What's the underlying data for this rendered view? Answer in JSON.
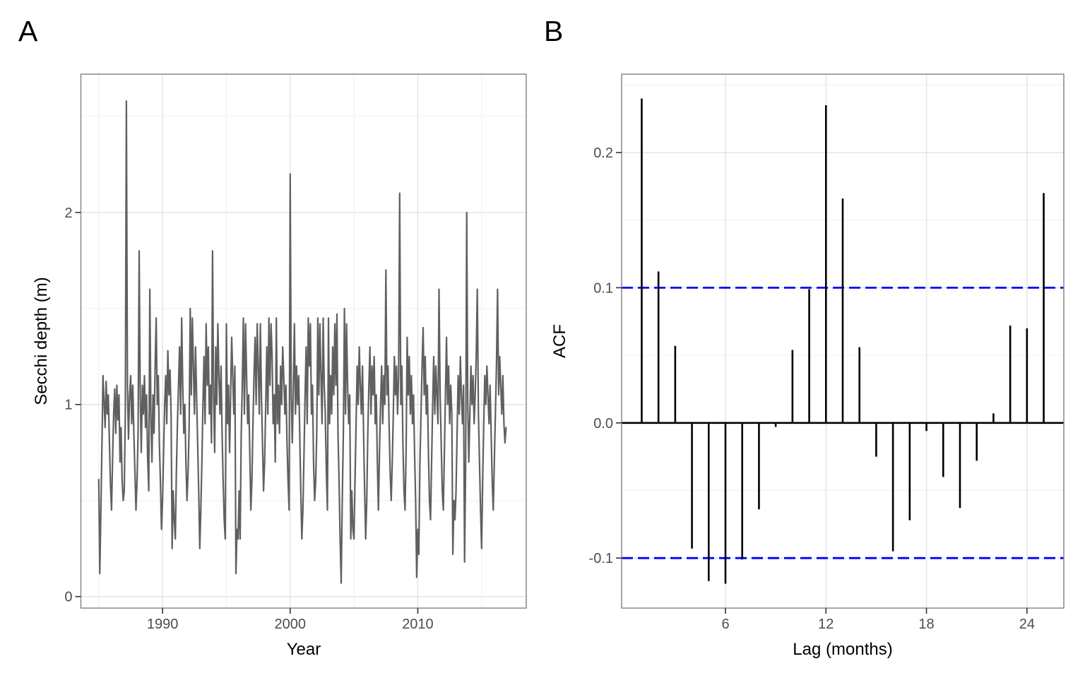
{
  "panels": [
    {
      "letter": "A"
    },
    {
      "letter": "B"
    }
  ],
  "colors": {
    "series_line": "#606060",
    "acf_bar": "#000000",
    "conf_line": "#0000ff",
    "grid_major": "#e3e3e3",
    "grid_minor": "#f0f0f0",
    "panel_border": "#808080",
    "tick_mark": "#333333",
    "tick_label": "#4d4d4d"
  },
  "chart_data": [
    {
      "type": "line",
      "panel": "A",
      "title": "",
      "xlabel": "Year",
      "ylabel": "Secchi depth (m)",
      "grid": true,
      "legend": "none",
      "x_start": 1985.0,
      "x_step": 0.0833333,
      "xlim": [
        1983.6,
        2018.5
      ],
      "ylim": [
        -0.06,
        2.72
      ],
      "x_ticks_major": [
        1990,
        2000,
        2010
      ],
      "x_tick_labels": [
        "1990",
        "2000",
        "2010"
      ],
      "x_ticks_minor": [
        1985,
        1995,
        2005,
        2015
      ],
      "y_ticks_major": [
        0,
        1,
        2
      ],
      "y_tick_labels": [
        "0",
        "1",
        "2"
      ],
      "y_ticks_minor": [
        0.5,
        1.5,
        2.5
      ],
      "values": [
        0.61,
        0.12,
        0.45,
        0.78,
        1.15,
        1.02,
        0.88,
        1.12,
        0.95,
        1.05,
        0.82,
        0.58,
        0.45,
        0.72,
        0.95,
        1.08,
        0.85,
        1.1,
        0.92,
        1.05,
        0.7,
        0.88,
        0.6,
        0.5,
        0.55,
        0.95,
        2.58,
        1.1,
        0.82,
        1.05,
        1.15,
        0.9,
        1.1,
        0.85,
        0.65,
        0.45,
        0.6,
        0.85,
        1.8,
        1.05,
        0.75,
        1.1,
        0.95,
        1.15,
        0.88,
        1.05,
        0.72,
        0.55,
        1.6,
        0.95,
        0.7,
        1.05,
        0.85,
        1.2,
        1.45,
        1.0,
        1.15,
        0.8,
        0.6,
        0.35,
        0.5,
        0.75,
        1.0,
        1.15,
        0.9,
        1.28,
        1.05,
        1.18,
        0.95,
        0.25,
        0.55,
        0.4,
        0.3,
        0.65,
        0.9,
        1.1,
        1.3,
        0.95,
        1.45,
        1.1,
        0.85,
        1.0,
        0.7,
        0.5,
        0.65,
        0.9,
        1.5,
        1.05,
        1.45,
        1.2,
        0.95,
        1.3,
        1.05,
        0.8,
        0.55,
        0.25,
        0.45,
        0.7,
        1.0,
        1.25,
        0.9,
        1.42,
        1.1,
        1.3,
        0.95,
        1.1,
        0.8,
        1.8,
        1.05,
        0.75,
        1.3,
        1.0,
        1.42,
        1.15,
        0.95,
        1.2,
        0.85,
        0.6,
        0.4,
        0.3,
        1.42,
        0.9,
        1.1,
        0.75,
        1.05,
        1.35,
        1.15,
        0.95,
        1.2,
        0.12,
        0.35,
        0.3,
        0.55,
        0.3,
        0.85,
        1.1,
        1.45,
        0.95,
        1.42,
        1.15,
        0.9,
        1.05,
        0.75,
        0.45,
        0.6,
        0.9,
        1.15,
        1.35,
        1.0,
        1.42,
        1.2,
        0.95,
        1.42,
        1.05,
        0.8,
        0.55,
        0.7,
        1.0,
        1.3,
        0.95,
        1.45,
        1.1,
        1.42,
        1.25,
        0.9,
        1.05,
        0.7,
        1.45,
        0.9,
        1.1,
        0.85,
        1.2,
        1.0,
        1.3,
        1.15,
        0.95,
        1.1,
        0.8,
        0.6,
        0.45,
        2.2,
        1.05,
        0.8,
        1.1,
        1.42,
        0.95,
        1.2,
        1.0,
        1.15,
        0.85,
        0.55,
        0.3,
        0.45,
        0.75,
        1.05,
        1.3,
        0.9,
        1.45,
        1.2,
        1.42,
        0.95,
        1.1,
        0.7,
        0.5,
        0.6,
        0.85,
        1.45,
        1.05,
        1.42,
        1.15,
        0.9,
        1.45,
        1.1,
        0.95,
        0.65,
        0.45,
        1.45,
        0.9,
        1.15,
        0.95,
        1.3,
        1.05,
        1.42,
        1.1,
        1.47,
        0.85,
        0.6,
        0.3,
        0.07,
        0.5,
        0.85,
        1.5,
        0.95,
        1.42,
        1.1,
        0.9,
        1.05,
        0.3,
        0.55,
        0.35,
        0.3,
        0.6,
        0.9,
        1.2,
        1.0,
        1.3,
        1.1,
        0.95,
        1.2,
        0.85,
        0.55,
        0.3,
        0.5,
        0.85,
        1.1,
        1.3,
        0.95,
        1.2,
        1.05,
        1.25,
        0.9,
        1.05,
        0.7,
        0.45,
        0.75,
        1.0,
        1.2,
        0.9,
        1.15,
        1.0,
        1.7,
        1.05,
        1.2,
        0.9,
        0.65,
        0.5,
        0.7,
        0.95,
        1.25,
        1.05,
        1.2,
        0.95,
        1.15,
        2.1,
        1.0,
        1.2,
        0.8,
        0.55,
        0.45,
        0.75,
        1.35,
        1.05,
        1.25,
        0.95,
        1.15,
        0.9,
        1.05,
        0.75,
        0.5,
        0.1,
        0.35,
        0.22,
        0.7,
        0.95,
        1.2,
        1.4,
        1.05,
        1.25,
        0.95,
        1.1,
        0.75,
        0.5,
        0.4,
        0.7,
        1.0,
        1.25,
        0.95,
        1.2,
        1.05,
        0.9,
        1.6,
        1.05,
        0.8,
        0.55,
        0.45,
        0.75,
        1.05,
        1.35,
        1.0,
        1.2,
        0.9,
        1.1,
        0.95,
        0.22,
        0.5,
        0.4,
        0.55,
        0.85,
        1.15,
        0.95,
        1.25,
        1.05,
        0.9,
        1.1,
        0.18,
        0.7,
        2.0,
        1.0,
        0.7,
        0.95,
        1.2,
        1.0,
        1.15,
        0.9,
        1.05,
        1.25,
        1.6,
        0.95,
        0.7,
        0.45,
        0.25,
        0.6,
        0.9,
        1.15,
        1.0,
        1.2,
        1.05,
        0.9,
        1.1,
        0.85,
        0.6,
        0.45,
        0.7,
        0.95,
        1.2,
        1.6,
        1.05,
        1.25,
        1.1,
        0.95,
        1.15,
        0.9,
        0.8,
        0.88
      ]
    },
    {
      "type": "bar",
      "panel": "B",
      "title": "",
      "xlabel": "Lag (months)",
      "ylabel": "ACF",
      "grid": true,
      "legend": "none",
      "xlim": [
        -0.2,
        26.2
      ],
      "ylim": [
        -0.137,
        0.258
      ],
      "x_ticks_major": [
        6,
        12,
        18,
        24
      ],
      "x_tick_labels": [
        "6",
        "12",
        "18",
        "24"
      ],
      "x_ticks_minor": [],
      "y_ticks_major": [
        -0.1,
        0.0,
        0.1,
        0.2
      ],
      "y_tick_labels": [
        "-0.1",
        "0.0",
        "0.1",
        "0.2"
      ],
      "y_ticks_minor": [
        -0.05,
        0.05,
        0.15,
        0.25
      ],
      "zero_line": 0.0,
      "conf_bounds": [
        0.1,
        -0.1
      ],
      "lags": [
        1,
        2,
        3,
        4,
        5,
        6,
        7,
        8,
        9,
        10,
        11,
        12,
        13,
        14,
        15,
        16,
        17,
        18,
        19,
        20,
        21,
        22,
        23,
        24,
        25
      ],
      "values": [
        0.24,
        0.112,
        0.057,
        -0.093,
        -0.117,
        -0.119,
        -0.101,
        -0.064,
        -0.003,
        0.054,
        0.099,
        0.235,
        0.166,
        0.056,
        -0.025,
        -0.095,
        -0.072,
        -0.006,
        -0.04,
        -0.063,
        -0.028,
        0.007,
        0.072,
        0.07,
        0.17
      ]
    }
  ]
}
